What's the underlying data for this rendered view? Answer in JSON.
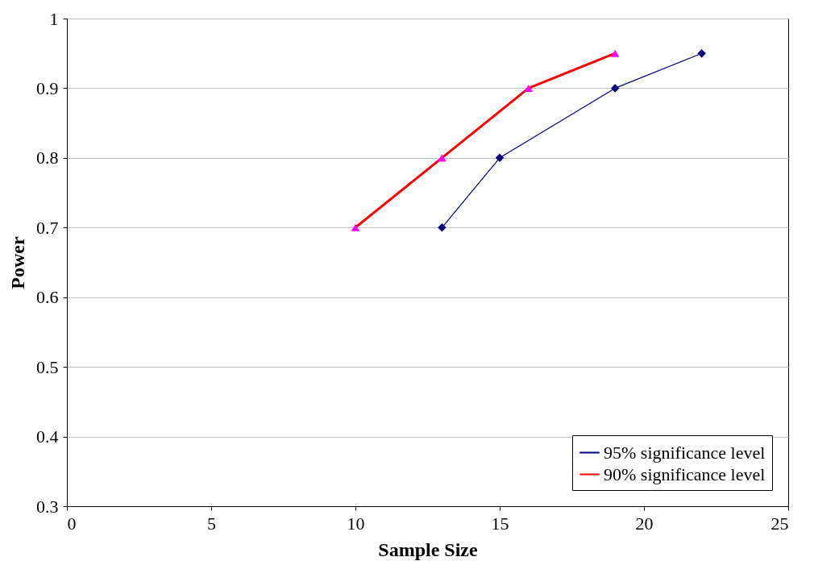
{
  "chart_data": {
    "type": "line",
    "xlabel": "Sample Size",
    "ylabel": "Power",
    "xlim": [
      0,
      25
    ],
    "xticks": [
      0,
      5,
      10,
      15,
      20,
      25
    ],
    "ylim": [
      0.3,
      1
    ],
    "yticks": [
      0.3,
      0.4,
      0.5,
      0.6,
      0.7,
      0.8,
      0.9,
      1
    ],
    "grid": "y",
    "legend": "bottom right",
    "series": [
      {
        "name": "95% significance level",
        "color": "#000080",
        "marker": "diamond",
        "x": [
          13,
          15,
          19,
          22
        ],
        "values": [
          0.7,
          0.8,
          0.9,
          0.95
        ]
      },
      {
        "name": "90% significance level",
        "color": "#ff0000",
        "marker": "triangle",
        "colors": [
          "#ff00ff",
          "#ff00ff",
          "#ff00ff",
          "#ff00ff"
        ],
        "x": [
          10,
          13,
          16,
          19
        ],
        "values": [
          0.7,
          0.8,
          0.9,
          0.95
        ]
      }
    ]
  }
}
